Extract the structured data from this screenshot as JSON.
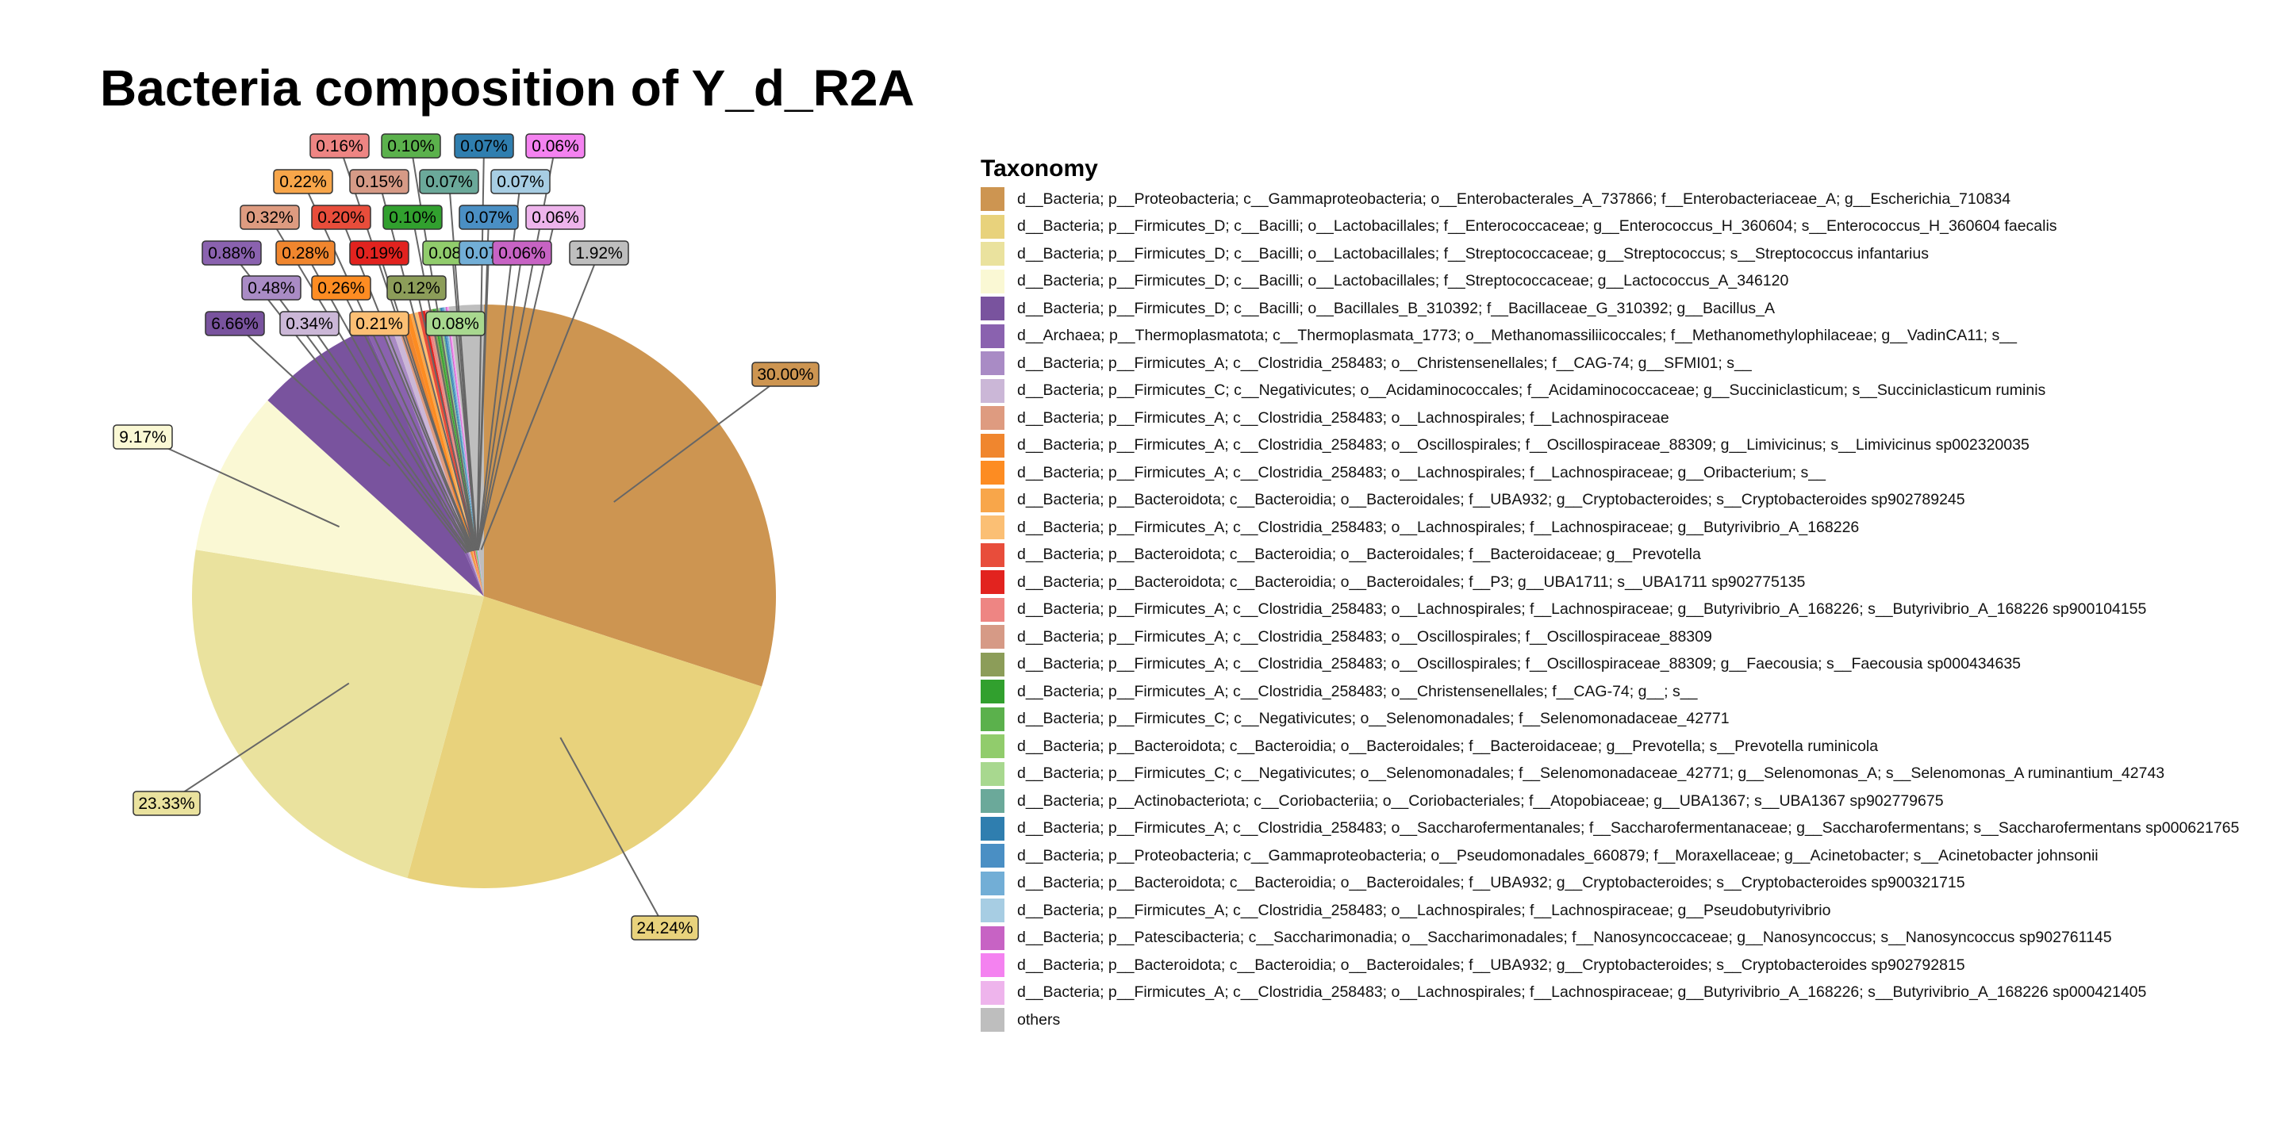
{
  "chart_data": {
    "type": "pie",
    "title": "Bacteria composition of Y_d_R2A",
    "legend_title": "Taxonomy",
    "legend_position": "right",
    "slices": [
      {
        "label": "d__Bacteria; p__Proteobacteria; c__Gammaproteobacteria; o__Enterobacterales_A_737866; f__Enterobacteriaceae_A; g__Escherichia_710834",
        "value": 30.0,
        "pct_label": "30.00%",
        "color": "#CD9551"
      },
      {
        "label": "d__Bacteria; p__Firmicutes_D; c__Bacilli; o__Lactobacillales; f__Enterococcaceae; g__Enterococcus_H_360604; s__Enterococcus_H_360604 faecalis",
        "value": 24.24,
        "pct_label": "24.24%",
        "color": "#E8D27C"
      },
      {
        "label": "d__Bacteria; p__Firmicutes_D; c__Bacilli; o__Lactobacillales; f__Streptococcaceae; g__Streptococcus; s__Streptococcus infantarius",
        "value": 23.33,
        "pct_label": "23.33%",
        "color": "#EAE29E"
      },
      {
        "label": "d__Bacteria; p__Firmicutes_D; c__Bacilli; o__Lactobacillales; f__Streptococcaceae; g__Lactococcus_A_346120",
        "value": 9.17,
        "pct_label": "9.17%",
        "color": "#FAF8D4"
      },
      {
        "label": "d__Bacteria; p__Firmicutes_D; c__Bacilli; o__Bacillales_B_310392; f__Bacillaceae_G_310392; g__Bacillus_A",
        "value": 6.66,
        "pct_label": "6.66%",
        "color": "#79539E"
      },
      {
        "label": "d__Archaea; p__Thermoplasmatota; c__Thermoplasmata_1773; o__Methanomassiliicoccales; f__Methanomethylophilaceae; g__VadinCA11; s__",
        "value": 0.88,
        "pct_label": "0.88%",
        "color": "#8A62AF"
      },
      {
        "label": "d__Bacteria; p__Firmicutes_A; c__Clostridia_258483; o__Christensenellales; f__CAG-74; g__SFMI01; s__",
        "value": 0.48,
        "pct_label": "0.48%",
        "color": "#A98BC5"
      },
      {
        "label": "d__Bacteria; p__Firmicutes_C; c__Negativicutes; o__Acidaminococcales; f__Acidaminococcaceae; g__Succiniclasticum; s__Succiniclasticum ruminis",
        "value": 0.34,
        "pct_label": "0.34%",
        "color": "#CBB7D7"
      },
      {
        "label": "d__Bacteria; p__Firmicutes_A; c__Clostridia_258483; o__Lachnospirales; f__Lachnospiraceae",
        "value": 0.32,
        "pct_label": "0.32%",
        "color": "#DE9B80"
      },
      {
        "label": "d__Bacteria; p__Firmicutes_A; c__Clostridia_258483; o__Oscillospirales; f__Oscillospiraceae_88309; g__Limivicinus; s__Limivicinus sp002320035",
        "value": 0.28,
        "pct_label": "0.28%",
        "color": "#F0862E"
      },
      {
        "label": "d__Bacteria; p__Firmicutes_A; c__Clostridia_258483; o__Lachnospirales; f__Lachnospiraceae; g__Oribacterium; s__",
        "value": 0.26,
        "pct_label": "0.26%",
        "color": "#FD8C22"
      },
      {
        "label": "d__Bacteria; p__Bacteroidota; c__Bacteroidia; o__Bacteroidales; f__UBA932; g__Cryptobacteroides; s__Cryptobacteroides sp902789245",
        "value": 0.22,
        "pct_label": "0.22%",
        "color": "#F8A64A"
      },
      {
        "label": "d__Bacteria; p__Firmicutes_A; c__Clostridia_258483; o__Lachnospirales; f__Lachnospiraceae; g__Butyrivibrio_A_168226",
        "value": 0.21,
        "pct_label": "0.21%",
        "color": "#FBBF74"
      },
      {
        "label": "d__Bacteria; p__Bacteroidota; c__Bacteroidia; o__Bacteroidales; f__Bacteroidaceae; g__Prevotella",
        "value": 0.2,
        "pct_label": "0.20%",
        "color": "#E84D3B"
      },
      {
        "label": "d__Bacteria; p__Bacteroidota; c__Bacteroidia; o__Bacteroidales; f__P3; g__UBA1711; s__UBA1711 sp902775135",
        "value": 0.19,
        "pct_label": "0.19%",
        "color": "#E2231F"
      },
      {
        "label": "d__Bacteria; p__Firmicutes_A; c__Clostridia_258483; o__Lachnospirales; f__Lachnospiraceae; g__Butyrivibrio_A_168226; s__Butyrivibrio_A_168226 sp900104155",
        "value": 0.16,
        "pct_label": "0.16%",
        "color": "#EE8583"
      },
      {
        "label": "d__Bacteria; p__Firmicutes_A; c__Clostridia_258483; o__Oscillospirales; f__Oscillospiraceae_88309",
        "value": 0.15,
        "pct_label": "0.15%",
        "color": "#D69A86"
      },
      {
        "label": "d__Bacteria; p__Firmicutes_A; c__Clostridia_258483; o__Oscillospirales; f__Oscillospiraceae_88309; g__Faecousia; s__Faecousia sp000434635",
        "value": 0.12,
        "pct_label": "0.12%",
        "color": "#8C9D59"
      },
      {
        "label": "d__Bacteria; p__Firmicutes_A; c__Clostridia_258483; o__Christensenellales; f__CAG-74; g__; s__",
        "value": 0.1,
        "pct_label": "0.10%",
        "color": "#31A02E"
      },
      {
        "label": "d__Bacteria; p__Firmicutes_C; c__Negativicutes; o__Selenomonadales; f__Selenomonadaceae_42771",
        "value": 0.1,
        "pct_label": "0.10%",
        "color": "#5BB14C"
      },
      {
        "label": "d__Bacteria; p__Bacteroidota; c__Bacteroidia; o__Bacteroidales; f__Bacteroidaceae; g__Prevotella; s__Prevotella ruminicola",
        "value": 0.08,
        "pct_label": "0.08%",
        "color": "#91CC6C"
      },
      {
        "label": "d__Bacteria; p__Firmicutes_C; c__Negativicutes; o__Selenomonadales; f__Selenomonadaceae_42771; g__Selenomonas_A; s__Selenomonas_A ruminantium_42743",
        "value": 0.08,
        "pct_label": "0.08%",
        "color": "#A8D88F"
      },
      {
        "label": "d__Bacteria; p__Actinobacteriota; c__Coriobacteriia; o__Coriobacteriales; f__Atopobiaceae; g__UBA1367; s__UBA1367 sp902779675",
        "value": 0.07,
        "pct_label": "0.07%",
        "color": "#6BA99A"
      },
      {
        "label": "d__Bacteria; p__Firmicutes_A; c__Clostridia_258483; o__Saccharofermentanales; f__Saccharofermentanaceae; g__Saccharofermentans; s__Saccharofermentans sp000621765",
        "value": 0.07,
        "pct_label": "0.07%",
        "color": "#2F7EAF"
      },
      {
        "label": "d__Bacteria; p__Proteobacteria; c__Gammaproteobacteria; o__Pseudomonadales_660879; f__Moraxellaceae; g__Acinetobacter; s__Acinetobacter johnsonii",
        "value": 0.07,
        "pct_label": "0.07%",
        "color": "#4A8FC4"
      },
      {
        "label": "d__Bacteria; p__Bacteroidota; c__Bacteroidia; o__Bacteroidales; f__UBA932; g__Cryptobacteroides; s__Cryptobacteroides sp900321715",
        "value": 0.07,
        "pct_label": "0.07%",
        "color": "#72AED6"
      },
      {
        "label": "d__Bacteria; p__Firmicutes_A; c__Clostridia_258483; o__Lachnospirales; f__Lachnospiraceae; g__Pseudobutyrivibrio",
        "value": 0.07,
        "pct_label": "0.07%",
        "color": "#A7CDE3"
      },
      {
        "label": "d__Bacteria; p__Patescibacteria; c__Saccharimonadia; o__Saccharimonadales; f__Nanosyncoccaceae; g__Nanosyncoccus; s__Nanosyncoccus sp902761145",
        "value": 0.06,
        "pct_label": "0.06%",
        "color": "#C763C4"
      },
      {
        "label": "d__Bacteria; p__Bacteroidota; c__Bacteroidia; o__Bacteroidales; f__UBA932; g__Cryptobacteroides; s__Cryptobacteroides sp902792815",
        "value": 0.06,
        "pct_label": "0.06%",
        "color": "#F482F0"
      },
      {
        "label": "d__Bacteria; p__Firmicutes_A; c__Clostridia_258483; o__Lachnospirales; f__Lachnospiraceae; g__Butyrivibrio_A_168226; s__Butyrivibrio_A_168226 sp000421405",
        "value": 0.06,
        "pct_label": "0.06%",
        "color": "#EEB4EC"
      },
      {
        "label": "others",
        "value": 1.92,
        "pct_label": "1.92%",
        "color": "#BEBEBE"
      }
    ]
  }
}
